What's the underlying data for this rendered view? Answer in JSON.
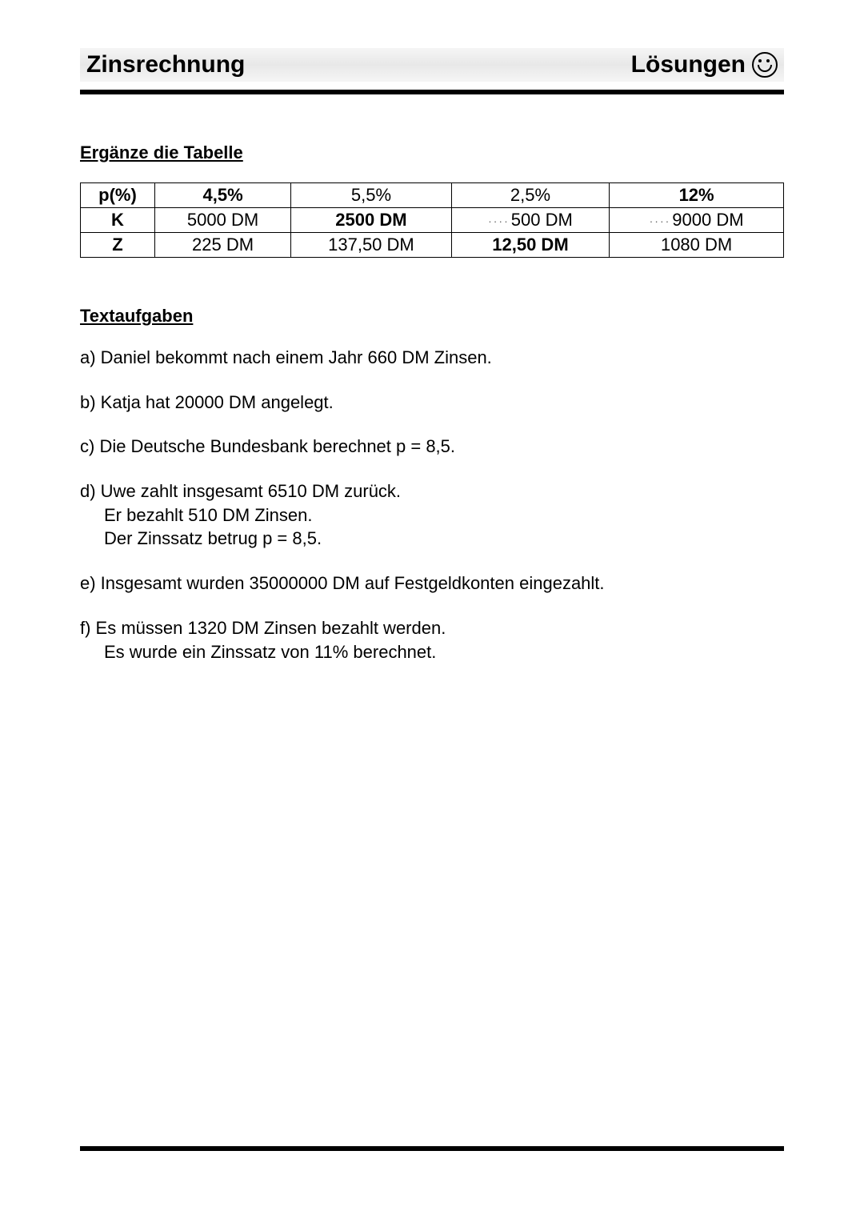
{
  "header": {
    "left": "Zinsrechnung",
    "right": "Lösungen"
  },
  "section1": {
    "title": "Ergänze die Tabelle"
  },
  "table": {
    "columns": [
      "p(%)",
      "K",
      "Z"
    ],
    "rows": [
      {
        "label": "p(%)",
        "cells": [
          {
            "text": "4,5%",
            "bold": true
          },
          {
            "text": "5,5%",
            "bold": false
          },
          {
            "text": "2,5%",
            "bold": false
          },
          {
            "text": "12%",
            "bold": true
          }
        ]
      },
      {
        "label": "K",
        "cells": [
          {
            "text": "5000 DM",
            "bold": false
          },
          {
            "text": "2500 DM",
            "bold": true
          },
          {
            "text": "500 DM",
            "bold": false,
            "dots": true
          },
          {
            "text": "9000 DM",
            "bold": false,
            "dots": true
          }
        ]
      },
      {
        "label": "Z",
        "cells": [
          {
            "text": "225 DM",
            "bold": false
          },
          {
            "text": "137,50 DM",
            "bold": false
          },
          {
            "text": "12,50 DM",
            "bold": true
          },
          {
            "text": "1080 DM",
            "bold": false
          }
        ]
      }
    ]
  },
  "section2": {
    "title": "Textaufgaben"
  },
  "problems": {
    "a": "a) Daniel bekommt nach einem Jahr 660 DM Zinsen.",
    "b": "b) Katja hat 20000 DM angelegt.",
    "c": "c) Die Deutsche Bundesbank berechnet p = 8,5.",
    "d": {
      "line1": "d) Uwe zahlt insgesamt 6510 DM zurück.",
      "line2": "Er bezahlt 510 DM Zinsen.",
      "line3": "Der Zinssatz betrug p = 8,5."
    },
    "e": "e) Insgesamt wurden 35000000 DM auf Festgeldkonten eingezahlt.",
    "f": {
      "line1": "f) Es müssen 1320 DM Zinsen bezahlt werden.",
      "line2": "Es wurde ein Zinssatz von 11% berechnet."
    }
  }
}
